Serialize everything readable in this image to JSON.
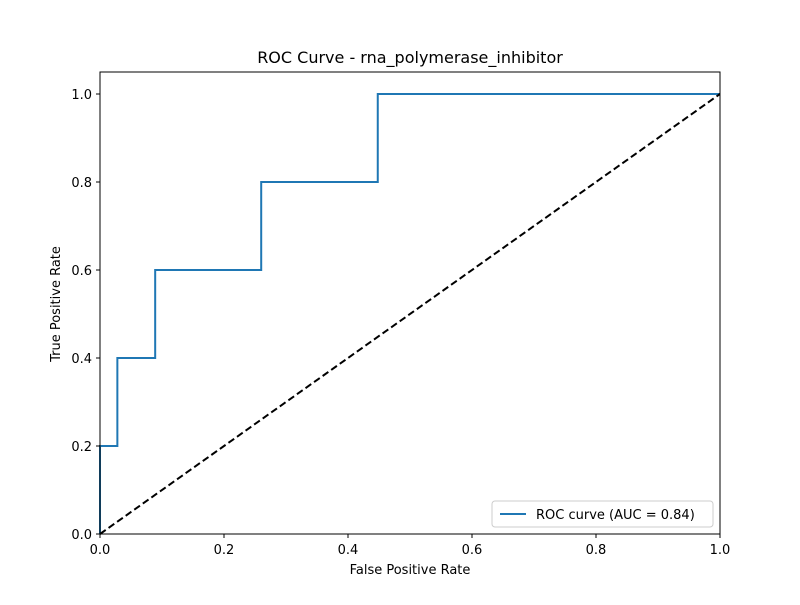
{
  "chart_data": {
    "type": "line",
    "title": "ROC Curve - rna_polymerase_inhibitor",
    "xlabel": "False Positive Rate",
    "ylabel": "True Positive Rate",
    "xlim": [
      0.0,
      1.0
    ],
    "ylim": [
      0.0,
      1.05
    ],
    "xticks": [
      0.0,
      0.2,
      0.4,
      0.6,
      0.8,
      1.0
    ],
    "xtick_labels": [
      "0.0",
      "0.2",
      "0.4",
      "0.6",
      "0.8",
      "1.0"
    ],
    "yticks": [
      0.0,
      0.2,
      0.4,
      0.6,
      0.8,
      1.0
    ],
    "ytick_labels": [
      "0.0",
      "0.2",
      "0.4",
      "0.6",
      "0.8",
      "1.0"
    ],
    "grid": false,
    "legend_position": "lower-right",
    "series": [
      {
        "name": "ROC curve (AUC = 0.84)",
        "color": "#1f77b4",
        "style": "solid",
        "x": [
          0.0,
          0.0,
          0.0,
          0.028,
          0.028,
          0.089,
          0.089,
          0.26,
          0.26,
          0.448,
          0.448,
          1.0
        ],
        "y": [
          0.0,
          0.0,
          0.2,
          0.2,
          0.4,
          0.4,
          0.6,
          0.6,
          0.8,
          0.8,
          1.0,
          1.0
        ]
      },
      {
        "name": "",
        "color": "#000000",
        "style": "dashed",
        "x": [
          0.0,
          1.0
        ],
        "y": [
          0.0,
          1.0
        ]
      }
    ]
  }
}
